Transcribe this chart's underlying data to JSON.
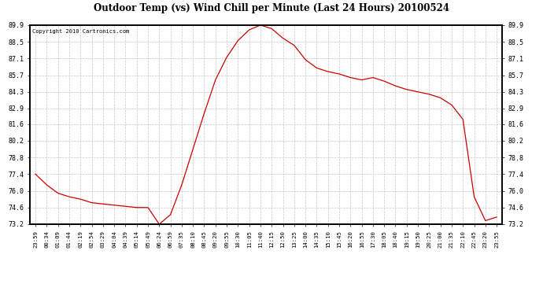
{
  "title": "Outdoor Temp (vs) Wind Chill per Minute (Last 24 Hours) 20100524",
  "copyright": "Copyright 2010 Cartronics.com",
  "line_color": "#cc0000",
  "background_color": "#ffffff",
  "grid_color": "#c8c8c8",
  "ylim": [
    73.2,
    89.9
  ],
  "yticks": [
    73.2,
    74.6,
    76.0,
    77.4,
    78.8,
    80.2,
    81.6,
    82.9,
    84.3,
    85.7,
    87.1,
    88.5,
    89.9
  ],
  "xtick_labels": [
    "23:59",
    "00:34",
    "01:09",
    "01:44",
    "02:19",
    "02:54",
    "03:29",
    "04:04",
    "04:39",
    "05:14",
    "05:49",
    "06:24",
    "06:59",
    "07:35",
    "08:10",
    "08:45",
    "09:20",
    "09:55",
    "10:30",
    "11:05",
    "11:40",
    "12:15",
    "12:50",
    "13:25",
    "14:00",
    "14:35",
    "15:10",
    "15:45",
    "16:20",
    "16:55",
    "17:30",
    "18:05",
    "18:40",
    "19:15",
    "19:50",
    "20:25",
    "21:00",
    "21:35",
    "22:10",
    "22:45",
    "23:20",
    "23:55"
  ],
  "curve_x": [
    0,
    1,
    2,
    3,
    4,
    5,
    6,
    7,
    8,
    9,
    10,
    11,
    12,
    13,
    14,
    15,
    16,
    17,
    18,
    19,
    20,
    21,
    22,
    23,
    24,
    25,
    26,
    27,
    28,
    29,
    30,
    31,
    32,
    33,
    34,
    35,
    36,
    37,
    38,
    39,
    40,
    41
  ],
  "curve_y": [
    77.4,
    76.5,
    75.8,
    75.5,
    75.3,
    75.0,
    74.9,
    74.8,
    74.7,
    74.6,
    74.6,
    73.2,
    74.0,
    76.5,
    79.5,
    82.5,
    85.3,
    87.2,
    88.6,
    89.5,
    89.9,
    89.6,
    88.8,
    88.2,
    87.0,
    86.3,
    86.0,
    85.8,
    85.5,
    85.3,
    85.5,
    85.2,
    84.8,
    84.5,
    84.3,
    84.1,
    83.8,
    83.2,
    82.0,
    75.5,
    73.5,
    73.8
  ]
}
